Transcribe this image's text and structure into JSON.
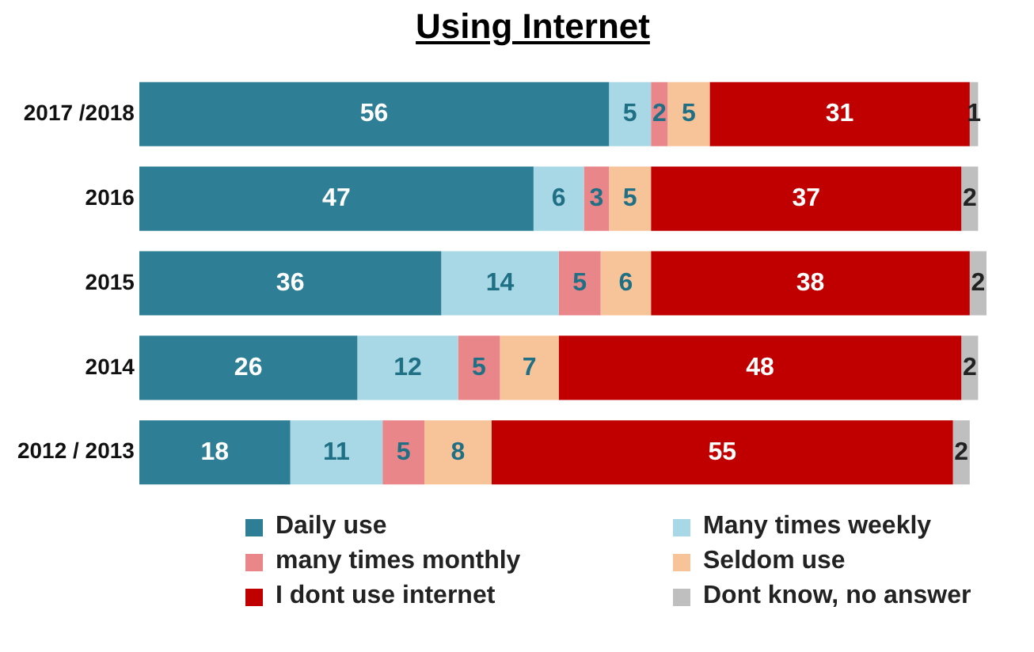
{
  "chart_data": {
    "type": "bar",
    "orientation": "horizontal",
    "stacked": true,
    "title": "Using Internet",
    "categories": [
      "2017 /2018",
      "2016",
      "2015",
      "2014",
      "2012 / 2013"
    ],
    "series": [
      {
        "name": "Daily use",
        "color": "#2e7f95",
        "values": [
          56,
          47,
          36,
          26,
          18
        ]
      },
      {
        "name": "Many times weekly",
        "color": "#a8d8e6",
        "values": [
          5,
          6,
          14,
          12,
          11
        ]
      },
      {
        "name": "many times monthly",
        "color": "#e8868a",
        "values": [
          2,
          3,
          5,
          5,
          5
        ]
      },
      {
        "name": "Seldom use",
        "color": "#f7c49a",
        "values": [
          5,
          5,
          6,
          7,
          8
        ]
      },
      {
        "name": "I dont use internet",
        "color": "#c00000",
        "values": [
          31,
          37,
          38,
          48,
          55
        ]
      },
      {
        "name": "Dont know, no answer",
        "color": "#bfbfbf",
        "values": [
          1,
          2,
          2,
          2,
          2
        ]
      }
    ],
    "data_labels": true,
    "legend": "bottom",
    "tick_labels": "y"
  }
}
